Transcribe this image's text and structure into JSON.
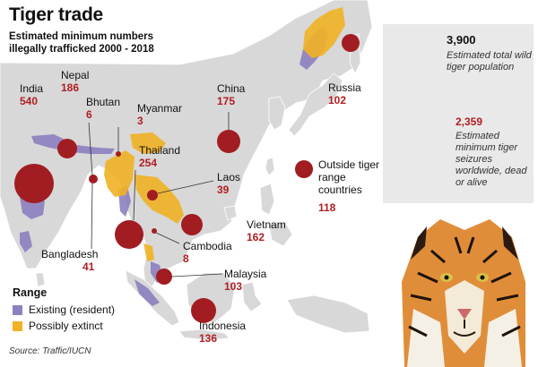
{
  "title": "Tiger trade",
  "subtitle": "Estimated minimum numbers illegally trafficked 2000 - 2018",
  "colors": {
    "bubble": "#a11d21",
    "value_text": "#b01e23",
    "existing_range": "#8d80c0",
    "extinct_range": "#f0b224",
    "land": "#d8d8d8",
    "sea": "#ffffff",
    "info_box": "#e9e9e9",
    "total_circle": "#b9a9d4",
    "seizure_circle": "#e2e8cb"
  },
  "countries": [
    {
      "name": "India",
      "value": "540"
    },
    {
      "name": "Nepal",
      "value": "186"
    },
    {
      "name": "Bhutan",
      "value": "6"
    },
    {
      "name": "Myanmar",
      "value": "3"
    },
    {
      "name": "China",
      "value": "175"
    },
    {
      "name": "Russia",
      "value": "102"
    },
    {
      "name": "Thailand",
      "value": "254"
    },
    {
      "name": "Laos",
      "value": "39"
    },
    {
      "name": "Vietnam",
      "value": "162"
    },
    {
      "name": "Cambodia",
      "value": "8"
    },
    {
      "name": "Bangladesh",
      "value": "41"
    },
    {
      "name": "Malaysia",
      "value": "103"
    },
    {
      "name": "Indonesia",
      "value": "136"
    }
  ],
  "outside": {
    "label": "Outside tiger range countries",
    "value": "118"
  },
  "info": {
    "total_value": "3,900",
    "total_label": "Estimated total wild tiger population",
    "seizure_value": "2,359",
    "seizure_label": "Estimated minimum tiger seizures worldwide, dead or alive"
  },
  "legend": {
    "title": "Range",
    "items": [
      {
        "label": "Existing (resident)",
        "color": "#8d80c0"
      },
      {
        "label": "Possibly extinct",
        "color": "#f0b224"
      }
    ]
  },
  "source": "Source: Traffic/IUCN"
}
